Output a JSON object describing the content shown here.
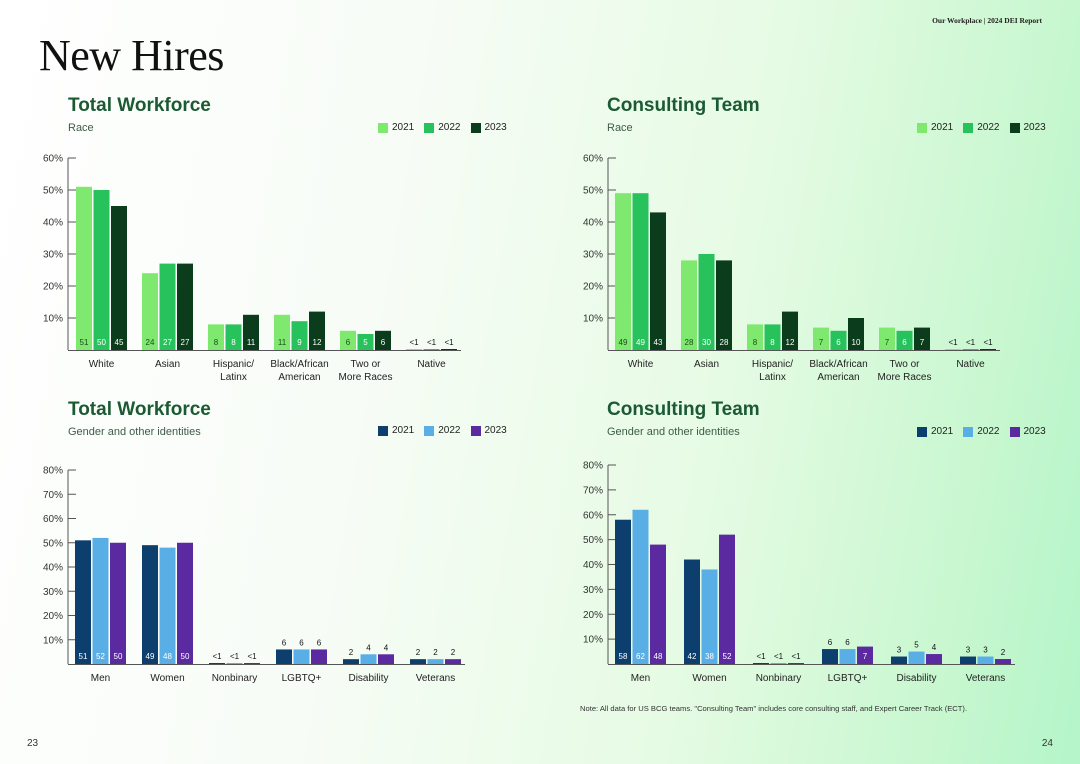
{
  "header": "Our Workplace | 2024 DEI Report",
  "page_title": "New Hires",
  "page_numbers": {
    "left": "23",
    "right": "24"
  },
  "note": "Note: All data for US BCG teams. \"Consulting Team\" includes core consulting staff, and Expert Career Track (ECT).",
  "years": [
    "2021",
    "2022",
    "2023"
  ],
  "colors": {
    "race": [
      "#7ee86f",
      "#27c25c",
      "#0b3d1c"
    ],
    "gender": [
      "#0c3f6e",
      "#5aaee6",
      "#5b2aa0"
    ]
  },
  "chart_data": [
    {
      "type": "bar",
      "title": "Total Workforce",
      "subtitle": "Race",
      "palette": "race",
      "categories": [
        "White",
        "Asian",
        "Hispanic/\nLatinx",
        "Black/African\nAmerican",
        "Two or\nMore Races",
        "Native"
      ],
      "ylim": [
        0,
        60
      ],
      "yticks": [
        "60%",
        "50%",
        "40%",
        "30%",
        "20%",
        "10%"
      ],
      "series": [
        {
          "name": "2021",
          "values": [
            51,
            24,
            8,
            11,
            6,
            0.3
          ],
          "labels": [
            "51",
            "24",
            "8",
            "11",
            "6",
            "<1"
          ]
        },
        {
          "name": "2022",
          "values": [
            50,
            27,
            8,
            9,
            5,
            0.3
          ],
          "labels": [
            "50",
            "27",
            "8",
            "9",
            "5",
            "<1"
          ]
        },
        {
          "name": "2023",
          "values": [
            45,
            27,
            11,
            12,
            6,
            0.3
          ],
          "labels": [
            "45",
            "27",
            "11",
            "12",
            "6",
            "<1"
          ]
        }
      ]
    },
    {
      "type": "bar",
      "title": "Consulting Team",
      "subtitle": "Race",
      "palette": "race",
      "categories": [
        "White",
        "Asian",
        "Hispanic/\nLatinx",
        "Black/African\nAmerican",
        "Two or\nMore Races",
        "Native"
      ],
      "ylim": [
        0,
        60
      ],
      "yticks": [
        "60%",
        "50%",
        "40%",
        "30%",
        "20%",
        "10%"
      ],
      "series": [
        {
          "name": "2021",
          "values": [
            49,
            28,
            8,
            7,
            7,
            0.3
          ],
          "labels": [
            "49",
            "28",
            "8",
            "7",
            "7",
            "<1"
          ]
        },
        {
          "name": "2022",
          "values": [
            49,
            30,
            8,
            6,
            6,
            0.3
          ],
          "labels": [
            "49",
            "30",
            "8",
            "6",
            "6",
            "<1"
          ]
        },
        {
          "name": "2023",
          "values": [
            43,
            28,
            12,
            10,
            7,
            0.3
          ],
          "labels": [
            "43",
            "28",
            "12",
            "10",
            "7",
            "<1"
          ]
        }
      ]
    },
    {
      "type": "bar",
      "title": "Total Workforce",
      "subtitle": "Gender and other identities",
      "palette": "gender",
      "categories": [
        "Men",
        "Women",
        "Nonbinary",
        "LGBTQ+",
        "Disability",
        "Veterans"
      ],
      "ylim": [
        0,
        80
      ],
      "yticks": [
        "80%",
        "70%",
        "60%",
        "50%",
        "40%",
        "30%",
        "20%",
        "10%"
      ],
      "series": [
        {
          "name": "2021",
          "values": [
            51,
            49,
            0.3,
            6,
            2,
            2
          ],
          "labels": [
            "51",
            "49",
            "<1",
            "6",
            "2",
            "2"
          ]
        },
        {
          "name": "2022",
          "values": [
            52,
            48,
            0.3,
            6,
            4,
            2
          ],
          "labels": [
            "52",
            "48",
            "<1",
            "6",
            "4",
            "2"
          ]
        },
        {
          "name": "2023",
          "values": [
            50,
            50,
            0.3,
            6,
            4,
            2
          ],
          "labels": [
            "50",
            "50",
            "<1",
            "6",
            "4",
            "2"
          ]
        }
      ]
    },
    {
      "type": "bar",
      "title": "Consulting Team",
      "subtitle": "Gender and other identities",
      "palette": "gender",
      "categories": [
        "Men",
        "Women",
        "Nonbinary",
        "LGBTQ+",
        "Disability",
        "Veterans"
      ],
      "ylim": [
        0,
        80
      ],
      "yticks": [
        "80%",
        "70%",
        "60%",
        "50%",
        "40%",
        "30%",
        "20%",
        "10%"
      ],
      "series": [
        {
          "name": "2021",
          "values": [
            58,
            42,
            0.3,
            6,
            3,
            3
          ],
          "labels": [
            "58",
            "42",
            "<1",
            "6",
            "3",
            "3"
          ]
        },
        {
          "name": "2022",
          "values": [
            62,
            38,
            0.3,
            6,
            5,
            3
          ],
          "labels": [
            "62",
            "38",
            "<1",
            "6",
            "5",
            "3"
          ]
        },
        {
          "name": "2023",
          "values": [
            48,
            52,
            0.3,
            7,
            4,
            2
          ],
          "labels": [
            "48",
            "52",
            "<1",
            "7",
            "4",
            "2"
          ]
        }
      ]
    }
  ]
}
